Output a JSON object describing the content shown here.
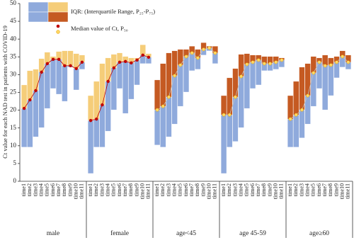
{
  "chart_data": {
    "type": "iqr_bar",
    "y_label": "Ct value for each NAD test in patients with COVID-19",
    "ylim": [
      0,
      50
    ],
    "yticks": [
      0,
      5,
      10,
      15,
      20,
      25,
      30,
      35,
      40,
      45,
      50
    ],
    "lower_color": "#8faadc",
    "legend": [
      {
        "label": "IQR: (Interquartile Range, P₂₅-P₇₅)",
        "colors": [
          "#8faadc",
          "#f5cd79",
          "#c55a22"
        ]
      },
      {
        "label": "Median value of Ct, P₅₀",
        "colors": [
          "#c00000",
          "#ffd966"
        ]
      }
    ],
    "categories": [
      "time1",
      "time2",
      "time3",
      "time4",
      "time5",
      "time6",
      "time7",
      "time8",
      "time9",
      "time10",
      "time11"
    ],
    "groups": [
      {
        "name": "male",
        "upper_color": "#f5cd79",
        "median_color": "#c00000",
        "line_color": "#c00000",
        "p25": [
          9.6,
          9.6,
          12.5,
          15.1,
          20.5,
          26.1,
          24.5,
          22.5,
          32.1,
          25.7,
          31.5
        ],
        "p50": [
          20.5,
          22.9,
          25.5,
          30.7,
          33.1,
          34.3,
          34.3,
          32.5,
          32.5,
          31.7,
          33.5
        ],
        "p75": [
          27.1,
          31.1,
          31.5,
          34.5,
          36.3,
          35.1,
          36.5,
          36.7,
          36.7,
          35.9,
          35.5
        ]
      },
      {
        "name": "female",
        "upper_color": "#f5cd79",
        "median_color": "#c00000",
        "line_color": "#c00000",
        "p25": [
          2.2,
          9.6,
          9.6,
          14.1,
          20.1,
          26.1,
          19.1,
          23.1,
          27.1,
          33.1,
          33.1
        ],
        "p50": [
          17.1,
          17.5,
          21.5,
          28.1,
          31.9,
          33.5,
          33.7,
          33.3,
          34.1,
          35.5,
          34.9
        ],
        "p75": [
          24.1,
          28.1,
          33.1,
          34.7,
          35.7,
          36.1,
          35.1,
          34.7,
          34.7,
          38.4,
          35.9
        ]
      },
      {
        "name": "age<45",
        "upper_color": "#c55a22",
        "median_color": "#ffd966",
        "line_color": "#bfbfbf",
        "p25": [
          10.2,
          9.6,
          12.5,
          16.1,
          21.1,
          25.1,
          31.1,
          31.5,
          35.5,
          36.7,
          33.1
        ],
        "p50": [
          20.1,
          21.1,
          23.7,
          29.7,
          32.7,
          35.1,
          36.1,
          34.7,
          37.1,
          37.5,
          36.1
        ],
        "p75": [
          28.5,
          33.1,
          36.1,
          36.7,
          37.1,
          37.1,
          38.0,
          37.1,
          39.0,
          38.0,
          38.0
        ]
      },
      {
        "name": "age 45-59",
        "upper_color": "#c55a22",
        "median_color": "#ffd966",
        "line_color": "#bfbfbf",
        "p25": [
          2.2,
          9.6,
          11.2,
          15.1,
          20.5,
          26.1,
          27.1,
          31.1,
          31.1,
          31.5,
          32.1
        ],
        "p50": [
          18.7,
          18.7,
          23.7,
          29.5,
          32.9,
          33.5,
          34.1,
          33.1,
          33.1,
          33.5,
          34.1
        ],
        "p75": [
          24.1,
          29.1,
          31.7,
          35.7,
          35.9,
          35.5,
          35.5,
          35.1,
          35.1,
          35.1,
          34.7
        ]
      },
      {
        "name": "age≥60",
        "upper_color": "#c55a22",
        "median_color": "#ffd966",
        "line_color": "#bfbfbf",
        "p25": [
          9.6,
          9.6,
          12.2,
          16.1,
          21.1,
          26.1,
          20.1,
          24.1,
          29.1,
          32.1,
          31.5
        ],
        "p50": [
          17.5,
          18.7,
          20.1,
          24.1,
          30.5,
          33.5,
          32.5,
          32.7,
          33.5,
          35.1,
          33.5
        ],
        "p75": [
          24.1,
          28.1,
          32.1,
          33.1,
          35.1,
          34.7,
          35.5,
          34.7,
          35.1,
          36.7,
          35.5
        ]
      }
    ]
  }
}
